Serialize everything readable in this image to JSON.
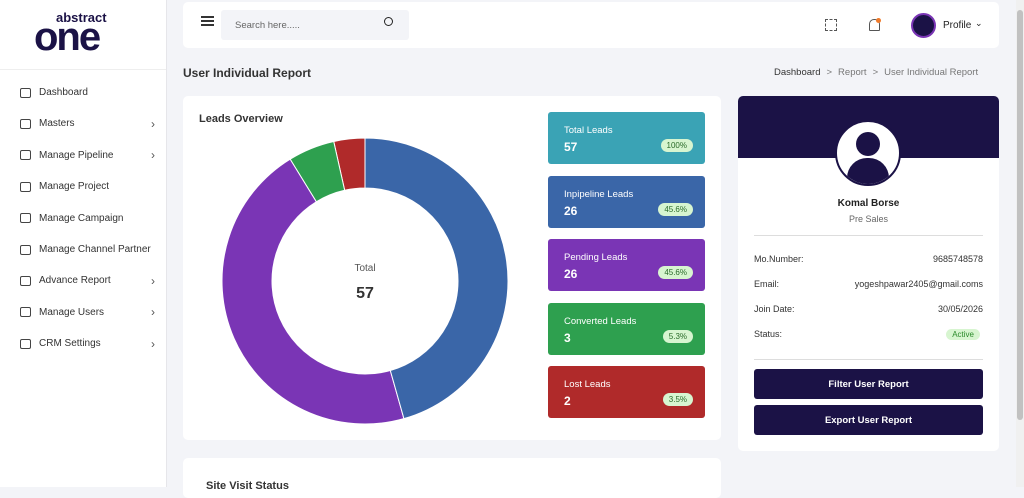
{
  "logo": {
    "top": "abstract",
    "main": "one"
  },
  "sidebar": [
    {
      "label": "Dashboard",
      "expandable": false
    },
    {
      "label": "Masters",
      "expandable": true
    },
    {
      "label": "Manage Pipeline",
      "expandable": true
    },
    {
      "label": "Manage Project",
      "expandable": false
    },
    {
      "label": "Manage Campaign",
      "expandable": false
    },
    {
      "label": "Manage Channel Partner",
      "expandable": false
    },
    {
      "label": "Advance Report",
      "expandable": true
    },
    {
      "label": "Manage Users",
      "expandable": true
    },
    {
      "label": "CRM Settings",
      "expandable": true
    }
  ],
  "header": {
    "search_placeholder": "Search here.....",
    "profile": "Profile"
  },
  "page_title": "User Individual Report",
  "breadcrumb": [
    "Dashboard",
    "Report",
    "User Individual Report"
  ],
  "leads_overview": {
    "title": "Leads Overview",
    "center_label": "Total"
  },
  "lead_cards": [
    {
      "label": "Total Leads",
      "value": 57,
      "percent": "100%",
      "color": "#3aa3b5"
    },
    {
      "label": "Inpipeline Leads",
      "value": 26,
      "percent": "45.6%",
      "color": "#3a66a8"
    },
    {
      "label": "Pending Leads",
      "value": 26,
      "percent": "45.6%",
      "color": "#7a35b5"
    },
    {
      "label": "Converted Leads",
      "value": 3,
      "percent": "5.3%",
      "color": "#2ea04f"
    },
    {
      "label": "Lost Leads",
      "value": 2,
      "percent": "3.5%",
      "color": "#b02a2a"
    }
  ],
  "profile_card": {
    "name": "Komal Borse",
    "role": "Pre Sales",
    "fields": [
      {
        "label": "Mo.Number:",
        "value": "9685748578"
      },
      {
        "label": "Email:",
        "value": "yogeshpawar2405@gmail.coms"
      },
      {
        "label": "Join Date:",
        "value": "30/05/2026"
      },
      {
        "label": "Status:",
        "value": "Active"
      }
    ],
    "buttons": [
      "Filter User Report",
      "Export User Report"
    ]
  },
  "next_section": {
    "title": "Site Visit Status"
  }
}
